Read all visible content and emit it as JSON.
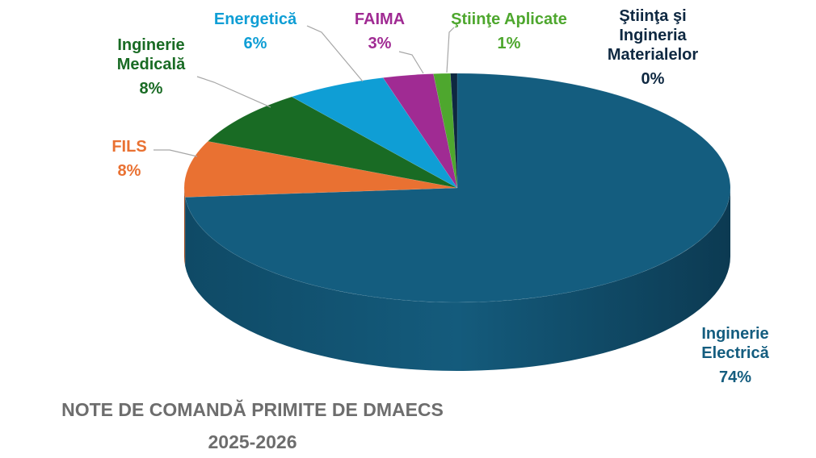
{
  "chart_data": {
    "type": "pie",
    "title_lines": [
      "NOTE DE COMANDĂ PRIMITE DE DMAECS",
      "2025-2026"
    ],
    "slices": [
      {
        "label_lines": [
          "Inginerie",
          "Electrică"
        ],
        "value": 74,
        "display": "74%",
        "color": "#145d7f"
      },
      {
        "label_lines": [
          "FILS"
        ],
        "value": 8,
        "display": "8%",
        "color": "#e97132"
      },
      {
        "label_lines": [
          "Inginerie",
          "Medicală"
        ],
        "value": 8,
        "display": "8%",
        "color": "#196b24"
      },
      {
        "label_lines": [
          "Energetică"
        ],
        "value": 6,
        "display": "6%",
        "color": "#0f9ed5"
      },
      {
        "label_lines": [
          "FAIMA"
        ],
        "value": 3,
        "display": "3%",
        "color": "#a02b93"
      },
      {
        "label_lines": [
          "Ştiinţe Aplicate"
        ],
        "value": 1,
        "display": "1%",
        "color": "#4ea72e"
      },
      {
        "label_lines": [
          "Ştiinţa şi",
          "Ingineria",
          "Materialelor"
        ],
        "value": 0.4,
        "display": "0%",
        "color": "#0e2841"
      }
    ],
    "legend": "none",
    "style": "3d"
  }
}
